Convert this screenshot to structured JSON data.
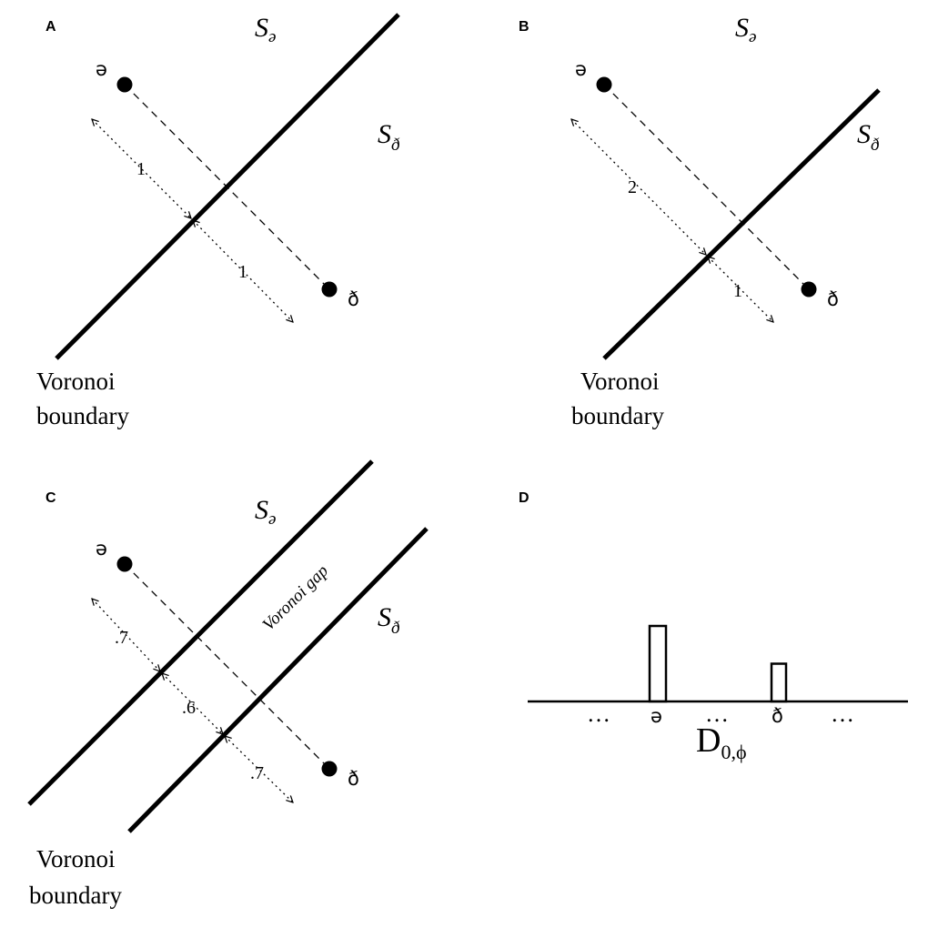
{
  "panels": {
    "A": {
      "label": "A",
      "region_top": "S",
      "region_top_sub": "ə",
      "region_right": "S",
      "region_right_sub": "ð",
      "point_top": "ə",
      "point_bottom": "ð",
      "dist_upper": "1",
      "dist_lower": "1",
      "boundary_line1": "Voronoi",
      "boundary_line2": "boundary"
    },
    "B": {
      "label": "B",
      "region_top": "S",
      "region_top_sub": "ə",
      "region_right": "S",
      "region_right_sub": "ð",
      "point_top": "ə",
      "point_bottom": "ð",
      "dist_upper": "2",
      "dist_lower": "1",
      "boundary_line1": "Voronoi",
      "boundary_line2": "boundary"
    },
    "C": {
      "label": "C",
      "region_top": "S",
      "region_top_sub": "ə",
      "region_right": "S",
      "region_right_sub": "ð",
      "point_top": "ə",
      "point_bottom": "ð",
      "dist_upper": ".7",
      "dist_middle": ".6",
      "dist_lower": ".7",
      "gap_label": "Voronoi gap",
      "boundary_line1": "Voronoi",
      "boundary_line2": "boundary"
    },
    "D": {
      "label": "D",
      "ellipsis": "…",
      "bar_left_label": "ə",
      "bar_right_label": "ð",
      "bar_left_value": 2,
      "bar_right_value": 1,
      "axis_label": "D",
      "axis_label_sub": "0,ϕ"
    }
  }
}
